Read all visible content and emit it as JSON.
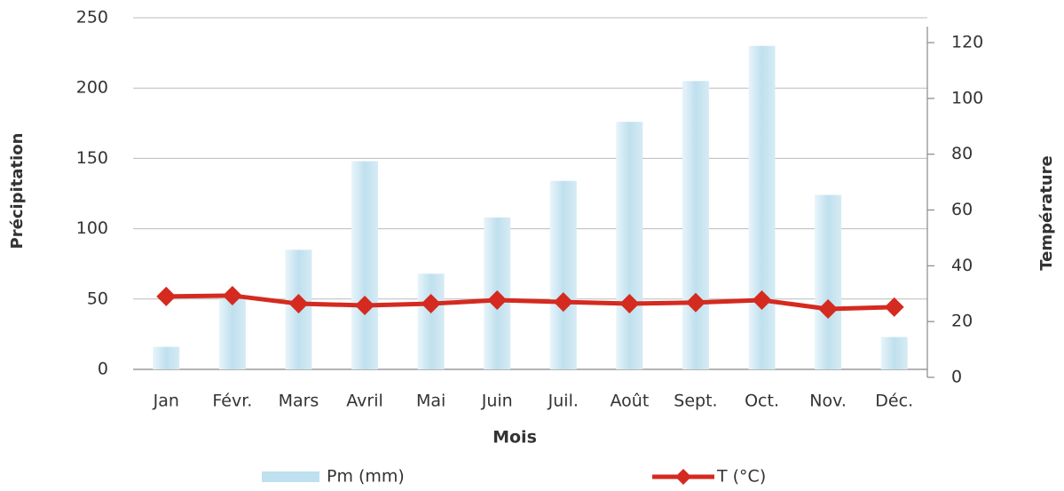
{
  "chart_data": {
    "type": "bar_line",
    "x_label": "Mois",
    "y_label": "Précipitation",
    "y2_label": "Température",
    "categories": [
      "Jan",
      "Févr.",
      "Mars",
      "Avril",
      "Mai",
      "Juin",
      "Juil.",
      "Août",
      "Sept.",
      "Oct.",
      "Nov.",
      "Déc."
    ],
    "series": [
      {
        "name": "Pm (mm)",
        "type": "bar",
        "color": "#bfe0ee",
        "values": [
          16,
          50,
          85,
          148,
          68,
          108,
          134,
          176,
          205,
          230,
          124,
          23
        ]
      },
      {
        "name": "T (°C)",
        "type": "line",
        "axis": "y2",
        "color": "#d42a20",
        "values": [
          29,
          29.3,
          26.4,
          25.8,
          26.4,
          27.7,
          27,
          26.4,
          26.8,
          27.7,
          24.5,
          25.2
        ]
      }
    ],
    "ylim": [
      0,
      250
    ],
    "yticks": [
      0,
      50,
      100,
      150,
      200,
      250
    ],
    "y2lim": [
      0,
      120
    ],
    "y2ticks": [
      0,
      20,
      40,
      60,
      80,
      100,
      120
    ],
    "grid": true,
    "legend": "bottom"
  }
}
